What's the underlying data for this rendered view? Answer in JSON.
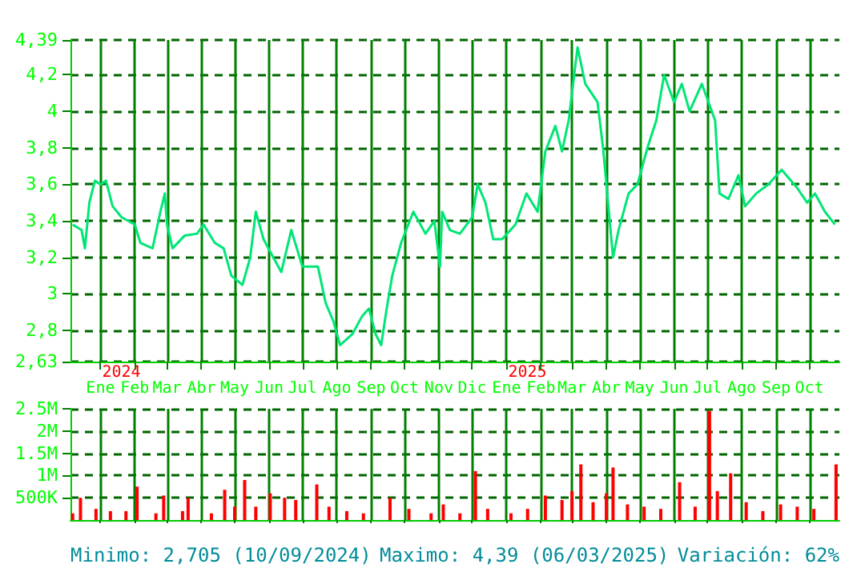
{
  "chart_data": [
    {
      "type": "line",
      "xlim": [
        "2023-12-05",
        "2025-10-28"
      ],
      "ylim": [
        2.63,
        4.39
      ],
      "xticks": [
        {
          "value": "2024-01-01",
          "label": "Ene"
        },
        {
          "value": "2024-02-01",
          "label": "Feb"
        },
        {
          "value": "2024-03-01",
          "label": "Mar"
        },
        {
          "value": "2024-04-01",
          "label": "Abr"
        },
        {
          "value": "2024-05-01",
          "label": "May"
        },
        {
          "value": "2024-06-01",
          "label": "Jun"
        },
        {
          "value": "2024-07-01",
          "label": "Jul"
        },
        {
          "value": "2024-08-01",
          "label": "Ago"
        },
        {
          "value": "2024-09-01",
          "label": "Sep"
        },
        {
          "value": "2024-10-01",
          "label": "Oct"
        },
        {
          "value": "2024-11-01",
          "label": "Nov"
        },
        {
          "value": "2024-12-01",
          "label": "Dic"
        },
        {
          "value": "2025-01-01",
          "label": "Ene"
        },
        {
          "value": "2025-02-01",
          "label": "Feb"
        },
        {
          "value": "2025-03-01",
          "label": "Mar"
        },
        {
          "value": "2025-04-01",
          "label": "Abr"
        },
        {
          "value": "2025-05-01",
          "label": "May"
        },
        {
          "value": "2025-06-01",
          "label": "Jun"
        },
        {
          "value": "2025-07-01",
          "label": "Jul"
        },
        {
          "value": "2025-08-01",
          "label": "Ago"
        },
        {
          "value": "2025-09-01",
          "label": "Sep"
        },
        {
          "value": "2025-10-01",
          "label": "Oct"
        }
      ],
      "yticks": [
        {
          "value": 2.63,
          "label": "2,63"
        },
        {
          "value": 2.8,
          "label": "2,8"
        },
        3,
        {
          "value": 3.2,
          "label": "3,2"
        },
        {
          "value": 3.4,
          "label": "3,4"
        },
        {
          "value": 3.6,
          "label": "3,6"
        },
        {
          "value": 3.8,
          "label": "3,8"
        },
        4,
        {
          "value": 4.2,
          "label": "4,2"
        },
        {
          "value": 4.39,
          "label": "4,39"
        }
      ],
      "grid": true,
      "marker": "none",
      "line_style": "solid",
      "annotations": [
        "2024",
        "2025"
      ],
      "series": [
        {
          "color": "#00e676",
          "x": [
            "2023-12-07",
            "2023-12-15",
            "2023-12-18",
            "2023-12-22",
            "2023-12-27",
            "2024-01-01",
            "2024-01-06",
            "2024-01-12",
            "2024-01-20",
            "2024-02-01",
            "2024-02-06",
            "2024-02-17",
            "2024-02-24",
            "2024-02-28",
            "2024-03-01",
            "2024-03-06",
            "2024-03-17",
            "2024-03-28",
            "2024-04-03",
            "2024-04-13",
            "2024-04-21",
            "2024-04-28",
            "2024-05-08",
            "2024-05-15",
            "2024-05-20",
            "2024-05-27",
            "2024-06-03",
            "2024-06-12",
            "2024-06-21",
            "2024-07-01",
            "2024-07-08",
            "2024-07-15",
            "2024-07-22",
            "2024-07-29",
            "2024-08-04",
            "2024-08-15",
            "2024-08-24",
            "2024-08-30",
            "2024-09-05",
            "2024-09-10",
            "2024-09-15",
            "2024-09-20",
            "2024-09-28",
            "2024-10-09",
            "2024-10-20",
            "2024-10-28",
            "2024-11-02",
            "2024-11-04",
            "2024-11-11",
            "2024-11-20",
            "2024-12-01",
            "2024-12-06",
            "2024-12-13",
            "2024-12-20",
            "2024-12-28",
            "2025-01-09",
            "2025-01-19",
            "2025-01-29",
            "2025-02-05",
            "2025-02-14",
            "2025-02-20",
            "2025-02-26",
            "2025-03-06",
            "2025-03-13",
            "2025-03-24",
            "2025-03-29",
            "2025-04-07",
            "2025-04-12",
            "2025-04-21",
            "2025-04-29",
            "2025-05-08",
            "2025-05-16",
            "2025-05-23",
            "2025-06-01",
            "2025-06-08",
            "2025-06-15",
            "2025-06-26",
            "2025-07-08",
            "2025-07-12",
            "2025-07-20",
            "2025-07-29",
            "2025-08-04",
            "2025-08-14",
            "2025-08-25",
            "2025-09-06",
            "2025-09-20",
            "2025-09-29",
            "2025-10-06",
            "2025-10-15",
            "2025-10-24"
          ],
          "values": [
            3.38,
            3.35,
            3.25,
            3.5,
            3.62,
            3.6,
            3.62,
            3.48,
            3.42,
            3.38,
            3.28,
            3.25,
            3.45,
            3.55,
            3.38,
            3.25,
            3.32,
            3.33,
            3.38,
            3.28,
            3.25,
            3.1,
            3.05,
            3.2,
            3.45,
            3.3,
            3.22,
            3.12,
            3.35,
            3.15,
            3.15,
            3.15,
            2.95,
            2.85,
            2.72,
            2.78,
            2.88,
            2.92,
            2.78,
            2.72,
            2.92,
            3.1,
            3.28,
            3.45,
            3.33,
            3.4,
            3.15,
            3.45,
            3.35,
            3.33,
            3.42,
            3.6,
            3.5,
            3.3,
            3.3,
            3.38,
            3.55,
            3.45,
            3.78,
            3.92,
            3.78,
            3.95,
            4.35,
            4.15,
            4.05,
            3.8,
            3.2,
            3.35,
            3.55,
            3.6,
            3.8,
            3.95,
            4.2,
            4.05,
            4.15,
            4.0,
            4.15,
            3.95,
            3.55,
            3.52,
            3.65,
            3.48,
            3.55,
            3.6,
            3.68,
            3.58,
            3.5,
            3.55,
            3.45,
            3.38
          ]
        }
      ]
    },
    {
      "type": "bar",
      "xlim": [
        "2023-12-05",
        "2025-10-28"
      ],
      "ylim": [
        0,
        2500000
      ],
      "tick_labels": "y",
      "xticks": [
        {
          "value": "2024-01-01",
          "label": null
        },
        {
          "value": "2024-02-01",
          "label": null
        },
        {
          "value": "2024-03-01",
          "label": null
        },
        {
          "value": "2024-04-01",
          "label": null
        },
        {
          "value": "2024-05-01",
          "label": null
        },
        {
          "value": "2024-06-01",
          "label": null
        },
        {
          "value": "2024-07-01",
          "label": null
        },
        {
          "value": "2024-08-01",
          "label": null
        },
        {
          "value": "2024-09-01",
          "label": null
        },
        {
          "value": "2024-10-01",
          "label": null
        },
        {
          "value": "2024-11-01",
          "label": null
        },
        {
          "value": "2024-12-01",
          "label": null
        },
        {
          "value": "2025-01-01",
          "label": null
        },
        {
          "value": "2025-02-01",
          "label": null
        },
        {
          "value": "2025-03-01",
          "label": null
        },
        {
          "value": "2025-04-01",
          "label": null
        },
        {
          "value": "2025-05-01",
          "label": null
        },
        {
          "value": "2025-06-01",
          "label": null
        },
        {
          "value": "2025-07-01",
          "label": null
        },
        {
          "value": "2025-08-01",
          "label": null
        },
        {
          "value": "2025-09-01",
          "label": null
        },
        {
          "value": "2025-10-01",
          "label": null
        }
      ],
      "yticks": [
        {
          "value": 500000,
          "label": "500K"
        },
        {
          "value": 1000000,
          "label": "1M"
        },
        {
          "value": 1500000,
          "label": "1.5M"
        },
        {
          "value": 2000000,
          "label": "2M"
        },
        {
          "value": 2500000,
          "label": "2.5M"
        }
      ],
      "grid": true,
      "annotations": [
        "Minimo: 2,705 (10/09/2024)",
        "Maximo: 4,39 (06/03/2025)",
        "Variación: 62%"
      ],
      "series": [
        {
          "color": "#ff0000",
          "x": [
            "2023-12-07",
            "2023-12-14",
            "2023-12-28",
            "2024-01-10",
            "2024-01-24",
            "2024-02-03",
            "2024-02-20",
            "2024-02-27",
            "2024-03-15",
            "2024-03-20",
            "2024-04-10",
            "2024-04-22",
            "2024-05-01",
            "2024-05-10",
            "2024-05-20",
            "2024-06-02",
            "2024-06-15",
            "2024-06-25",
            "2024-07-14",
            "2024-07-25",
            "2024-08-10",
            "2024-08-25",
            "2024-09-18",
            "2024-10-05",
            "2024-10-25",
            "2024-11-05",
            "2024-11-20",
            "2024-12-04",
            "2024-12-15",
            "2025-01-05",
            "2025-01-20",
            "2025-02-05",
            "2025-02-20",
            "2025-03-01",
            "2025-03-09",
            "2025-03-20",
            "2025-04-01",
            "2025-04-07",
            "2025-04-20",
            "2025-05-05",
            "2025-05-20",
            "2025-06-06",
            "2025-06-20",
            "2025-07-03",
            "2025-07-10",
            "2025-07-22",
            "2025-08-05",
            "2025-08-20",
            "2025-09-05",
            "2025-09-20",
            "2025-10-05",
            "2025-10-25"
          ],
          "values": [
            150000,
            500000,
            250000,
            200000,
            200000,
            750000,
            150000,
            550000,
            200000,
            500000,
            150000,
            680000,
            300000,
            900000,
            300000,
            600000,
            500000,
            450000,
            800000,
            300000,
            200000,
            150000,
            500000,
            250000,
            150000,
            350000,
            150000,
            1100000,
            250000,
            150000,
            250000,
            550000,
            450000,
            650000,
            1250000,
            400000,
            600000,
            1180000,
            350000,
            300000,
            250000,
            850000,
            300000,
            2450000,
            650000,
            1050000,
            400000,
            200000,
            350000,
            300000,
            250000,
            1250000
          ]
        }
      ]
    }
  ]
}
